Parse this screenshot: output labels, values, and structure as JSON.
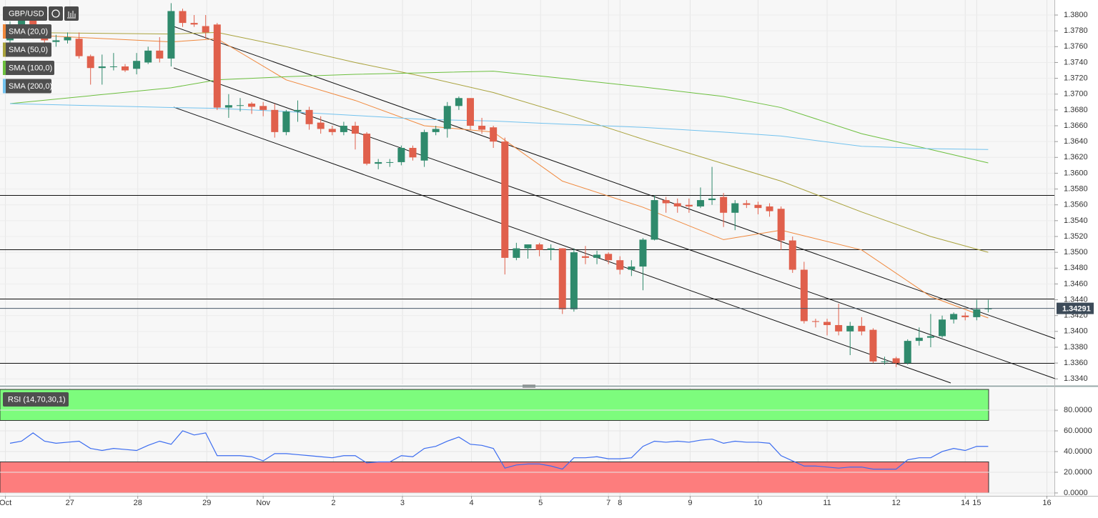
{
  "chart_data": [
    {
      "type": "candlestick",
      "title": "GBP/USD",
      "xlim": [
        -0.87,
        90.75
      ],
      "xticks": [
        {
          "value": -0.4,
          "label": "Oct"
        },
        {
          "value": 5.2,
          "label": "27"
        },
        {
          "value": 11.1,
          "label": "28"
        },
        {
          "value": 17.1,
          "label": "29"
        },
        {
          "value": 22,
          "label": "Nov"
        },
        {
          "value": 28.1,
          "label": "2"
        },
        {
          "value": 34.1,
          "label": "3"
        },
        {
          "value": 40.1,
          "label": "4"
        },
        {
          "value": 46.1,
          "label": "5"
        },
        {
          "value": 52,
          "label": "7"
        },
        {
          "value": 53,
          "label": "8"
        },
        {
          "value": 59.1,
          "label": "9"
        },
        {
          "value": 65,
          "label": "10"
        },
        {
          "value": 71,
          "label": "11"
        },
        {
          "value": 77,
          "label": "12"
        },
        {
          "value": 83,
          "label": "14"
        },
        {
          "value": 84,
          "label": "15"
        },
        {
          "value": 90.1,
          "label": "16"
        }
      ],
      "ylim": [
        1.3333,
        1.3819
      ],
      "yticks": [
        {
          "value": 1.334,
          "label": "1.3340"
        },
        {
          "value": 1.336,
          "label": "1.3360"
        },
        {
          "value": 1.338,
          "label": "1.3380"
        },
        {
          "value": 1.34,
          "label": "1.3400"
        },
        {
          "value": 1.342,
          "label": "1.3420"
        },
        {
          "value": 1.344,
          "label": "1.3440"
        },
        {
          "value": 1.346,
          "label": "1.3460"
        },
        {
          "value": 1.348,
          "label": "1.3480"
        },
        {
          "value": 1.35,
          "label": "1.3500"
        },
        {
          "value": 1.352,
          "label": "1.3520"
        },
        {
          "value": 1.354,
          "label": "1.3540"
        },
        {
          "value": 1.356,
          "label": "1.3560"
        },
        {
          "value": 1.358,
          "label": "1.3580"
        },
        {
          "value": 1.36,
          "label": "1.3600"
        },
        {
          "value": 1.362,
          "label": "1.3620"
        },
        {
          "value": 1.364,
          "label": "1.3640"
        },
        {
          "value": 1.366,
          "label": "1.3660"
        },
        {
          "value": 1.368,
          "label": "1.3680"
        },
        {
          "value": 1.37,
          "label": "1.3700"
        },
        {
          "value": 1.372,
          "label": "1.3720"
        },
        {
          "value": 1.374,
          "label": "1.3740"
        },
        {
          "value": 1.376,
          "label": "1.3760"
        },
        {
          "value": 1.378,
          "label": "1.3780"
        },
        {
          "value": 1.38,
          "label": "1.3800"
        }
      ],
      "grid": true,
      "up_color": "#2f8a6c",
      "down_color": "#e0604c",
      "open": [
        1.3768,
        1.378,
        1.3795,
        1.3775,
        1.3766,
        1.3768,
        1.377,
        1.3748,
        1.3733,
        1.3735,
        1.3735,
        1.3732,
        1.374,
        1.3755,
        1.3745,
        1.3805,
        1.379,
        1.3786,
        1.3788,
        1.3683,
        1.3686,
        1.3688,
        1.3685,
        1.368,
        1.3652,
        1.3678,
        1.368,
        1.3664,
        1.3656,
        1.3652,
        1.366,
        1.365,
        1.3612,
        1.3614,
        1.3614,
        1.3632,
        1.3616,
        1.3652,
        1.3656,
        1.3685,
        1.3695,
        1.366,
        1.3658,
        1.364,
        1.3493,
        1.3505,
        1.351,
        1.3503,
        1.3505,
        1.3428,
        1.3495,
        1.3493,
        1.3498,
        1.349,
        1.3478,
        1.3482,
        1.3516,
        1.3566,
        1.3562,
        1.356,
        1.3558,
        1.3566,
        1.357,
        1.355,
        1.3562,
        1.356,
        1.3558,
        1.3555,
        1.3515,
        1.3478,
        1.3413,
        1.3412,
        1.3408,
        1.34,
        1.3407,
        1.3402,
        1.3362,
        1.3366,
        1.336,
        1.3388,
        1.3392,
        1.3394,
        1.3415,
        1.342,
        1.3418,
        1.3428
      ],
      "high": [
        1.3792,
        1.38,
        1.38,
        1.3778,
        1.3775,
        1.3778,
        1.3778,
        1.375,
        1.375,
        1.3752,
        1.3738,
        1.3752,
        1.376,
        1.3772,
        1.3815,
        1.3808,
        1.38,
        1.38,
        1.379,
        1.37,
        1.3695,
        1.369,
        1.369,
        1.3688,
        1.368,
        1.3692,
        1.3684,
        1.3672,
        1.366,
        1.3665,
        1.3665,
        1.3652,
        1.3618,
        1.3618,
        1.3635,
        1.3635,
        1.3655,
        1.366,
        1.369,
        1.3697,
        1.3695,
        1.367,
        1.366,
        1.3645,
        1.3512,
        1.351,
        1.3512,
        1.351,
        1.3505,
        1.3505,
        1.3508,
        1.3502,
        1.35,
        1.3495,
        1.349,
        1.3518,
        1.3572,
        1.357,
        1.3568,
        1.3568,
        1.3582,
        1.3608,
        1.3575,
        1.3566,
        1.3566,
        1.3564,
        1.3562,
        1.3558,
        1.352,
        1.3488,
        1.3416,
        1.3416,
        1.3435,
        1.3412,
        1.3418,
        1.3404,
        1.3368,
        1.3368,
        1.339,
        1.3405,
        1.3422,
        1.342,
        1.3424,
        1.3424,
        1.344,
        1.344
      ],
      "low": [
        1.3762,
        1.377,
        1.377,
        1.376,
        1.376,
        1.3764,
        1.3745,
        1.3712,
        1.3712,
        1.373,
        1.3728,
        1.3725,
        1.3738,
        1.374,
        1.3735,
        1.3785,
        1.3785,
        1.377,
        1.368,
        1.367,
        1.3678,
        1.3675,
        1.3672,
        1.3645,
        1.3648,
        1.3665,
        1.3655,
        1.365,
        1.3648,
        1.3648,
        1.363,
        1.361,
        1.3605,
        1.3608,
        1.361,
        1.3616,
        1.3608,
        1.3648,
        1.3645,
        1.368,
        1.3655,
        1.365,
        1.3632,
        1.3472,
        1.349,
        1.3492,
        1.3495,
        1.349,
        1.3422,
        1.3425,
        1.3485,
        1.3485,
        1.3485,
        1.3472,
        1.347,
        1.3452,
        1.3515,
        1.355,
        1.355,
        1.355,
        1.3556,
        1.356,
        1.3532,
        1.3528,
        1.3556,
        1.3548,
        1.3545,
        1.3503,
        1.3474,
        1.341,
        1.3405,
        1.3395,
        1.3395,
        1.337,
        1.3395,
        1.336,
        1.3358,
        1.3355,
        1.3358,
        1.3382,
        1.338,
        1.3392,
        1.341,
        1.3414,
        1.3414,
        1.3424
      ],
      "close": [
        1.378,
        1.3795,
        1.3775,
        1.3768,
        1.3768,
        1.3772,
        1.3748,
        1.3733,
        1.3735,
        1.3735,
        1.373,
        1.3742,
        1.3755,
        1.3745,
        1.3805,
        1.379,
        1.3788,
        1.3778,
        1.3683,
        1.3686,
        1.3686,
        1.3684,
        1.368,
        1.3652,
        1.3678,
        1.368,
        1.3662,
        1.3656,
        1.3652,
        1.366,
        1.365,
        1.3612,
        1.3614,
        1.3614,
        1.3632,
        1.362,
        1.3652,
        1.3656,
        1.3685,
        1.3695,
        1.366,
        1.3655,
        1.364,
        1.3493,
        1.3505,
        1.351,
        1.3503,
        1.3505,
        1.3428,
        1.35,
        1.3493,
        1.3497,
        1.349,
        1.3478,
        1.3482,
        1.3516,
        1.3566,
        1.3562,
        1.3558,
        1.3558,
        1.3566,
        1.3568,
        1.355,
        1.3562,
        1.356,
        1.3556,
        1.3552,
        1.3515,
        1.3478,
        1.3413,
        1.3412,
        1.3408,
        1.34,
        1.3407,
        1.34,
        1.3362,
        1.3362,
        1.336,
        1.3388,
        1.3392,
        1.3394,
        1.3415,
        1.3422,
        1.3418,
        1.3428,
        1.3429
      ],
      "last_price": 1.34291,
      "series": [
        {
          "name": "SMA (20,0)",
          "color": "#f0883c",
          "x": [
            0,
            14,
            18,
            24,
            30,
            36,
            42,
            48,
            55,
            62,
            67,
            74,
            80,
            85
          ],
          "values": [
            1.3776,
            1.3766,
            1.377,
            1.3718,
            1.3692,
            1.366,
            1.3652,
            1.359,
            1.3557,
            1.3516,
            1.3528,
            1.3503,
            1.3444,
            1.3417
          ]
        },
        {
          "name": "SMA (50,0)",
          "color": "#a9a23c",
          "x": [
            0,
            14,
            18,
            24,
            30,
            36,
            42,
            48,
            55,
            62,
            67,
            74,
            80,
            85
          ],
          "values": [
            1.3778,
            1.3776,
            1.3778,
            1.376,
            1.374,
            1.3722,
            1.3702,
            1.3676,
            1.3643,
            1.3612,
            1.359,
            1.3551,
            1.352,
            1.35
          ]
        },
        {
          "name": "SMA (100,0)",
          "color": "#6cbf3e",
          "x": [
            0,
            14,
            18,
            24,
            30,
            36,
            42,
            48,
            55,
            62,
            67,
            74,
            80,
            85
          ],
          "values": [
            1.3688,
            1.3708,
            1.3718,
            1.3722,
            1.3725,
            1.3727,
            1.3729,
            1.372,
            1.3709,
            1.3697,
            1.3683,
            1.365,
            1.363,
            1.3613
          ]
        },
        {
          "name": "SMA (200,0)",
          "color": "#72c2ee",
          "x": [
            0,
            14,
            18,
            24,
            30,
            36,
            42,
            48,
            55,
            62,
            67,
            74,
            80,
            85
          ],
          "values": [
            1.3688,
            1.3683,
            1.3682,
            1.3678,
            1.3673,
            1.3668,
            1.3666,
            1.3662,
            1.3658,
            1.3652,
            1.3647,
            1.3634,
            1.3631,
            1.363
          ]
        }
      ]
    },
    {
      "type": "line",
      "ylim": [
        -2.8,
        101.4
      ],
      "yticks": [
        {
          "value": 0,
          "label": "0.0000"
        },
        {
          "value": 20,
          "label": "20.0000"
        },
        {
          "value": 40,
          "label": "40.0000"
        },
        {
          "value": 60,
          "label": "60.0000"
        },
        {
          "value": 80,
          "label": "80.0000"
        }
      ],
      "zones": [
        {
          "from": 70,
          "to": 100,
          "color": "#7dfc7d"
        },
        {
          "from": 0,
          "to": 30,
          "color": "#fd7d7d"
        }
      ],
      "series": [
        {
          "name": "RSI (14,70,30,1)",
          "color": "#3b6cf0",
          "values": [
            48,
            50,
            58,
            50,
            48,
            49,
            50,
            43,
            41,
            43,
            42,
            41,
            46,
            50,
            47,
            60,
            56,
            58,
            36,
            36,
            36,
            35,
            31,
            38,
            38,
            37,
            36,
            35,
            34,
            36,
            36,
            29,
            30,
            30,
            36,
            35,
            43,
            45,
            50,
            54,
            47,
            46,
            43,
            24,
            27,
            28,
            28,
            26,
            23,
            34,
            34,
            35,
            33,
            33,
            34,
            45,
            50,
            49,
            50,
            49,
            51,
            52,
            48,
            50,
            49,
            49,
            48,
            36,
            31,
            26,
            26,
            25,
            24,
            25,
            25,
            23,
            23,
            23,
            32,
            34,
            34,
            40,
            43,
            41,
            45,
            45
          ]
        }
      ]
    }
  ]
}
